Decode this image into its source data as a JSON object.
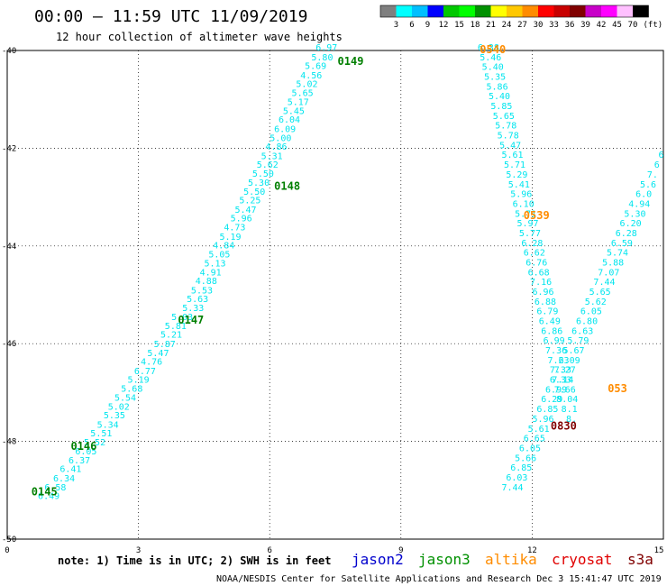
{
  "chart_data": {
    "type": "scatter",
    "title": "00:00 – 11:59 UTC 11/09/2019",
    "subtitle": "12 hour collection of altimeter wave heights",
    "xlim": [
      0,
      15
    ],
    "ylim": [
      -50,
      -40
    ],
    "x_ticks": [
      "0",
      "3",
      "6",
      "9",
      "12",
      "15"
    ],
    "y_ticks": [
      "-40",
      "-42",
      "-44",
      "-46",
      "-48",
      "-50"
    ],
    "grid": true,
    "color_scale": {
      "unit": "(ft)",
      "labels": [
        "3",
        "6",
        "9",
        "12",
        "15",
        "18",
        "21",
        "24",
        "27",
        "30",
        "33",
        "36",
        "39",
        "42",
        "45",
        "70"
      ],
      "colors": [
        "#7f7f7f",
        "#00ffff",
        "#00bfff",
        "#0000ff",
        "#00c800",
        "#00ff00",
        "#009000",
        "#ffff00",
        "#ffc800",
        "#ff8c00",
        "#ff0000",
        "#c80000",
        "#800000",
        "#c800c8",
        "#ff00ff",
        "#ffc0ff",
        "#000000"
      ]
    },
    "pass_labels": [
      {
        "label": "0149",
        "x": 7.85,
        "y": -40.22,
        "color": "#007f00"
      },
      {
        "label": "0148",
        "x": 6.4,
        "y": -42.78,
        "color": "#007f00"
      },
      {
        "label": "0147",
        "x": 4.2,
        "y": -45.52,
        "color": "#007f00"
      },
      {
        "label": "0146",
        "x": 1.75,
        "y": -48.1,
        "color": "#007f00"
      },
      {
        "label": "0145",
        "x": 0.85,
        "y": -49.03,
        "color": "#007f00"
      },
      {
        "label": "0540",
        "x": 11.1,
        "y": -39.98,
        "color": "#ff8c00"
      },
      {
        "label": "0539",
        "x": 12.1,
        "y": -43.38,
        "color": "#ff8c00"
      },
      {
        "label": "053",
        "x": 13.95,
        "y": -46.92,
        "color": "#ff8c00"
      },
      {
        "label": "0830",
        "x": 12.72,
        "y": -47.68,
        "color": "#800000"
      }
    ],
    "series": [
      {
        "name": "jason3",
        "color": "#00e5ee",
        "points": [
          {
            "x": 7.3,
            "y": -40.0,
            "v": "6.97"
          },
          {
            "x": 7.2,
            "y": -40.2,
            "v": "5.80"
          },
          {
            "x": 7.05,
            "y": -40.38,
            "v": "5.69"
          },
          {
            "x": 6.95,
            "y": -40.57,
            "v": "4.56"
          },
          {
            "x": 6.85,
            "y": -40.75,
            "v": "5.02"
          },
          {
            "x": 6.75,
            "y": -40.93,
            "v": "5.65"
          },
          {
            "x": 6.65,
            "y": -41.12,
            "v": "5.17"
          },
          {
            "x": 6.55,
            "y": -41.3,
            "v": "5.45"
          },
          {
            "x": 6.45,
            "y": -41.48,
            "v": "6.04"
          },
          {
            "x": 6.35,
            "y": -41.67,
            "v": "6.09"
          },
          {
            "x": 6.25,
            "y": -41.85,
            "v": "5.00"
          },
          {
            "x": 6.15,
            "y": -42.03,
            "v": "4.86"
          },
          {
            "x": 6.05,
            "y": -42.22,
            "v": "5.31"
          },
          {
            "x": 5.95,
            "y": -42.4,
            "v": "5.62"
          },
          {
            "x": 5.85,
            "y": -42.58,
            "v": "5.50"
          },
          {
            "x": 5.75,
            "y": -42.77,
            "v": "5.30"
          },
          {
            "x": 5.65,
            "y": -42.95,
            "v": "5.50"
          },
          {
            "x": 5.55,
            "y": -43.13,
            "v": "5.25"
          },
          {
            "x": 5.45,
            "y": -43.32,
            "v": "5.47"
          },
          {
            "x": 5.35,
            "y": -43.5,
            "v": "5.96"
          },
          {
            "x": 5.2,
            "y": -43.68,
            "v": "4.73"
          },
          {
            "x": 5.1,
            "y": -43.87,
            "v": "5.19"
          },
          {
            "x": 4.95,
            "y": -44.05,
            "v": "4.84"
          },
          {
            "x": 4.85,
            "y": -44.23,
            "v": "5.05"
          },
          {
            "x": 4.75,
            "y": -44.42,
            "v": "5.13"
          },
          {
            "x": 4.65,
            "y": -44.6,
            "v": "4.91"
          },
          {
            "x": 4.55,
            "y": -44.78,
            "v": "4.88"
          },
          {
            "x": 4.45,
            "y": -44.97,
            "v": "5.53"
          },
          {
            "x": 4.35,
            "y": -45.15,
            "v": "5.63"
          },
          {
            "x": 4.25,
            "y": -45.33,
            "v": "5.33"
          },
          {
            "x": 4.0,
            "y": -45.52,
            "v": "5.03"
          },
          {
            "x": 3.85,
            "y": -45.7,
            "v": "5.81"
          },
          {
            "x": 3.75,
            "y": -45.88,
            "v": "5.21"
          },
          {
            "x": 3.6,
            "y": -46.07,
            "v": "5.87"
          },
          {
            "x": 3.45,
            "y": -46.25,
            "v": "5.47"
          },
          {
            "x": 3.3,
            "y": -46.43,
            "v": "4.76"
          },
          {
            "x": 3.15,
            "y": -46.62,
            "v": "6.77"
          },
          {
            "x": 3.0,
            "y": -46.8,
            "v": "5.19"
          },
          {
            "x": 2.85,
            "y": -46.98,
            "v": "5.68"
          },
          {
            "x": 2.7,
            "y": -47.17,
            "v": "5.54"
          },
          {
            "x": 2.55,
            "y": -47.35,
            "v": "5.02"
          },
          {
            "x": 2.45,
            "y": -47.53,
            "v": "5.35"
          },
          {
            "x": 2.3,
            "y": -47.72,
            "v": "5.34"
          },
          {
            "x": 2.15,
            "y": -47.9,
            "v": "5.51"
          },
          {
            "x": 2.0,
            "y": -48.08,
            "v": "5.52"
          },
          {
            "x": 1.8,
            "y": -48.27,
            "v": "6.05"
          },
          {
            "x": 1.65,
            "y": -48.45,
            "v": "6.37"
          },
          {
            "x": 1.45,
            "y": -48.63,
            "v": "6.41"
          },
          {
            "x": 1.3,
            "y": -48.82,
            "v": "6.34"
          },
          {
            "x": 1.1,
            "y": -49.0,
            "v": "6.58"
          },
          {
            "x": 0.95,
            "y": -49.18,
            "v": "6.49"
          }
        ]
      },
      {
        "name": "altika",
        "color": "#00e5ee",
        "points": [
          {
            "x": 11.0,
            "y": -40.0,
            "v": "6.38"
          },
          {
            "x": 11.05,
            "y": -40.2,
            "v": "5.46"
          },
          {
            "x": 11.1,
            "y": -40.4,
            "v": "5.40"
          },
          {
            "x": 11.15,
            "y": -40.6,
            "v": "5.35"
          },
          {
            "x": 11.2,
            "y": -40.8,
            "v": "5.86"
          },
          {
            "x": 11.25,
            "y": -41.0,
            "v": "5.40"
          },
          {
            "x": 11.3,
            "y": -41.2,
            "v": "5.85"
          },
          {
            "x": 11.35,
            "y": -41.4,
            "v": "5.65"
          },
          {
            "x": 11.4,
            "y": -41.6,
            "v": "5.78"
          },
          {
            "x": 11.45,
            "y": -41.8,
            "v": "5.78"
          },
          {
            "x": 11.5,
            "y": -42.0,
            "v": "5.47"
          },
          {
            "x": 11.55,
            "y": -42.2,
            "v": "5.61"
          },
          {
            "x": 11.6,
            "y": -42.4,
            "v": "5.71"
          },
          {
            "x": 11.65,
            "y": -42.6,
            "v": "5.29"
          },
          {
            "x": 11.7,
            "y": -42.8,
            "v": "5.41"
          },
          {
            "x": 11.75,
            "y": -43.0,
            "v": "5.96"
          },
          {
            "x": 11.8,
            "y": -43.2,
            "v": "6.10"
          },
          {
            "x": 11.85,
            "y": -43.4,
            "v": "5.71"
          },
          {
            "x": 11.9,
            "y": -43.6,
            "v": "5.97"
          },
          {
            "x": 11.95,
            "y": -43.8,
            "v": "5.77"
          },
          {
            "x": 12.0,
            "y": -44.0,
            "v": "6.28"
          },
          {
            "x": 12.05,
            "y": -44.2,
            "v": "6.62"
          },
          {
            "x": 12.1,
            "y": -44.4,
            "v": "6.76"
          },
          {
            "x": 12.15,
            "y": -44.6,
            "v": "6.68"
          },
          {
            "x": 12.2,
            "y": -44.8,
            "v": "7.16"
          },
          {
            "x": 12.25,
            "y": -45.0,
            "v": "6.96"
          },
          {
            "x": 12.3,
            "y": -45.2,
            "v": "6.88"
          },
          {
            "x": 12.35,
            "y": -45.4,
            "v": "6.79"
          },
          {
            "x": 12.4,
            "y": -45.6,
            "v": "6.49"
          },
          {
            "x": 12.45,
            "y": -45.8,
            "v": "6.86"
          },
          {
            "x": 12.5,
            "y": -46.0,
            "v": "6.99"
          },
          {
            "x": 12.55,
            "y": -46.2,
            "v": "7.36"
          },
          {
            "x": 12.6,
            "y": -46.4,
            "v": "7.23"
          },
          {
            "x": 12.65,
            "y": -46.6,
            "v": "7.33"
          },
          {
            "x": 12.7,
            "y": -46.8,
            "v": "7.14"
          },
          {
            "x": 12.75,
            "y": -47.0,
            "v": "7.66"
          },
          {
            "x": 12.8,
            "y": -47.2,
            "v": "8.04"
          },
          {
            "x": 12.85,
            "y": -47.4,
            "v": "8.1"
          },
          {
            "x": 12.9,
            "y": -47.6,
            "v": "8."
          }
        ]
      },
      {
        "name": "cryosat",
        "color": "#00e5ee",
        "points": [
          {
            "x": 14.95,
            "y": -42.2,
            "v": "6"
          },
          {
            "x": 14.85,
            "y": -42.4,
            "v": "6"
          },
          {
            "x": 14.75,
            "y": -42.6,
            "v": "7."
          },
          {
            "x": 14.65,
            "y": -42.8,
            "v": "5.6"
          },
          {
            "x": 14.55,
            "y": -43.0,
            "v": "6.0"
          },
          {
            "x": 14.45,
            "y": -43.2,
            "v": "4.94"
          },
          {
            "x": 14.35,
            "y": -43.4,
            "v": "5.30"
          },
          {
            "x": 14.25,
            "y": -43.6,
            "v": "6.20"
          },
          {
            "x": 14.15,
            "y": -43.8,
            "v": "6.28"
          },
          {
            "x": 14.05,
            "y": -44.0,
            "v": "6.59"
          },
          {
            "x": 13.95,
            "y": -44.2,
            "v": "5.74"
          },
          {
            "x": 13.85,
            "y": -44.4,
            "v": "5.88"
          },
          {
            "x": 13.75,
            "y": -44.6,
            "v": "7.07"
          },
          {
            "x": 13.65,
            "y": -44.8,
            "v": "7.44"
          },
          {
            "x": 13.55,
            "y": -45.0,
            "v": "5.65"
          },
          {
            "x": 13.45,
            "y": -45.2,
            "v": "5.62"
          },
          {
            "x": 13.35,
            "y": -45.4,
            "v": "6.05"
          },
          {
            "x": 13.25,
            "y": -45.6,
            "v": "6.80"
          },
          {
            "x": 13.15,
            "y": -45.8,
            "v": "6.63"
          },
          {
            "x": 13.05,
            "y": -46.0,
            "v": "5.79"
          },
          {
            "x": 12.95,
            "y": -46.2,
            "v": "5.67"
          },
          {
            "x": 12.85,
            "y": -46.4,
            "v": "6.09"
          },
          {
            "x": 12.75,
            "y": -46.6,
            "v": "7.27"
          },
          {
            "x": 12.65,
            "y": -46.8,
            "v": "6.33"
          },
          {
            "x": 12.55,
            "y": -47.0,
            "v": "6.99"
          },
          {
            "x": 12.45,
            "y": -47.2,
            "v": "6.29"
          },
          {
            "x": 12.35,
            "y": -47.4,
            "v": "6.85"
          },
          {
            "x": 12.25,
            "y": -47.6,
            "v": "5.96"
          },
          {
            "x": 12.15,
            "y": -47.8,
            "v": "5.61"
          },
          {
            "x": 12.05,
            "y": -48.0,
            "v": "6.65"
          },
          {
            "x": 11.95,
            "y": -48.2,
            "v": "6.05"
          },
          {
            "x": 11.85,
            "y": -48.4,
            "v": "5.66"
          },
          {
            "x": 11.75,
            "y": -48.6,
            "v": "6.85"
          },
          {
            "x": 11.65,
            "y": -48.8,
            "v": "6.03"
          },
          {
            "x": 11.55,
            "y": -49.0,
            "v": "7.44"
          }
        ]
      }
    ]
  },
  "notes": {
    "note": "note: 1) Time is in UTC; 2) SWH is in feet",
    "satellites": [
      {
        "name": "jason2",
        "color": "#0000cd"
      },
      {
        "name": "jason3",
        "color": "#009000"
      },
      {
        "name": "altika",
        "color": "#ff8c00"
      },
      {
        "name": "cryosat",
        "color": "#e00000"
      },
      {
        "name": "s3a",
        "color": "#800000"
      }
    ],
    "credit": "NOAA/NESDIS Center for Satellite Applications and Research    Dec  3 15:41:47 UTC 2019"
  }
}
